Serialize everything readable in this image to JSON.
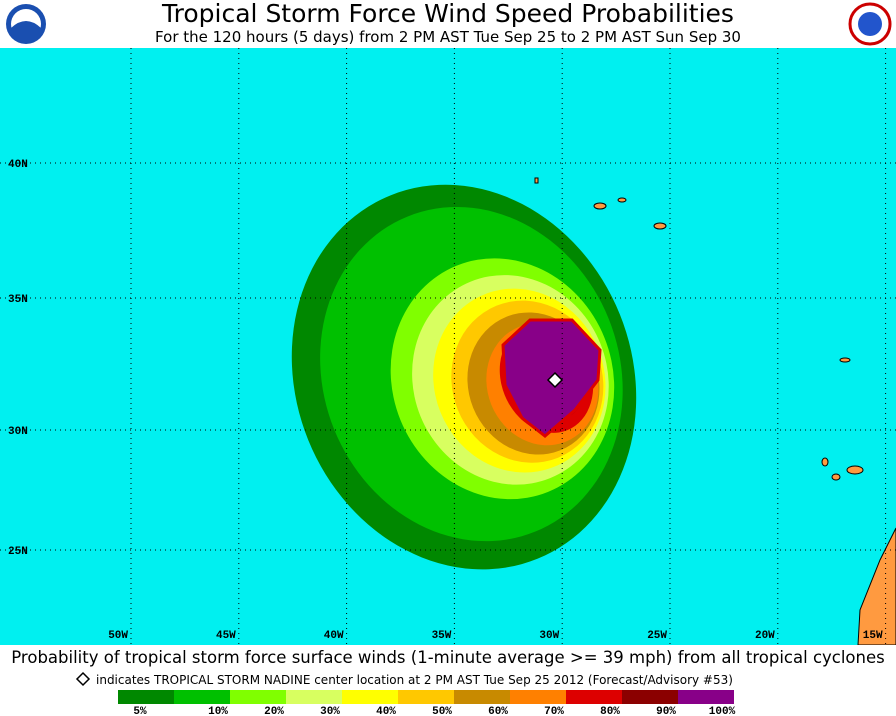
{
  "header": {
    "title": "Tropical Storm Force Wind Speed Probabilities",
    "subtitle": "For the 120 hours (5 days) from 2 PM AST Tue Sep 25 to 2 PM AST Sun Sep 30"
  },
  "map": {
    "lat_labels": [
      "40N",
      "35N",
      "30N",
      "25N"
    ],
    "lon_labels": [
      "50W",
      "45W",
      "40W",
      "35W",
      "30W",
      "25W",
      "20W",
      "15W"
    ]
  },
  "footer": {
    "caption": "Probability of tropical storm force surface winds (1-minute average >= 39 mph) from all tropical cyclones",
    "marker_note": "indicates TROPICAL STORM NADINE center location at 2 PM AST Tue Sep 25 2012 (Forecast/Advisory #53)",
    "legend": [
      "5%",
      "10%",
      "20%",
      "30%",
      "40%",
      "50%",
      "60%",
      "70%",
      "80%",
      "90%",
      "100%"
    ]
  }
}
